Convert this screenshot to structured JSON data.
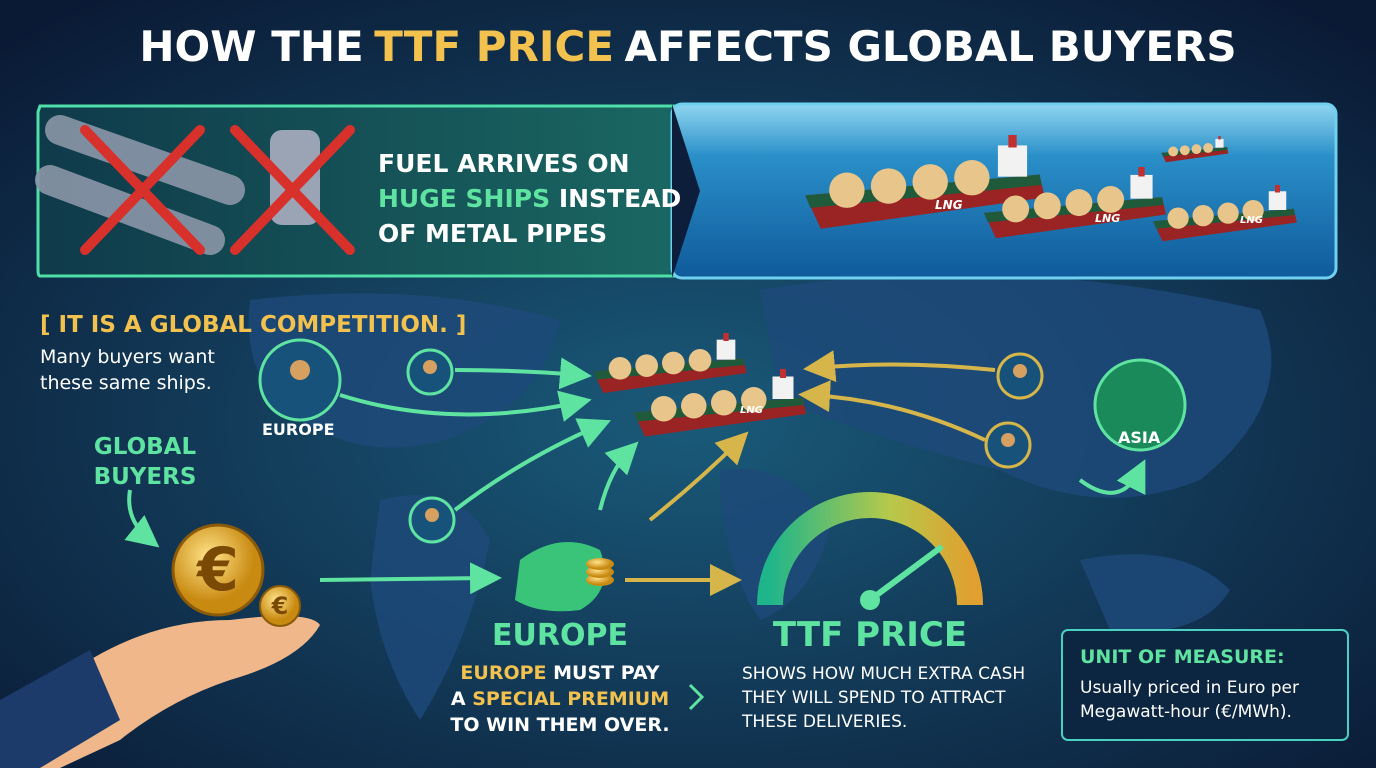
{
  "title": {
    "before": "HOW THE",
    "highlight": "TTF PRICE",
    "after": "AFFECTS GLOBAL BUYERS"
  },
  "banner": {
    "line1": "FUEL ARRIVES ON",
    "highlight": "HUGE SHIPS",
    "line2_rest": "INSTEAD",
    "line3": "OF METAL PIPES"
  },
  "ship_label": "LNG",
  "competition": {
    "heading": "[ IT IS A GLOBAL COMPETITION. ]",
    "body": "Many buyers want these same ships."
  },
  "map_labels": {
    "europe": "EUROPE",
    "asia": "ASIA"
  },
  "global_buyers": "GLOBAL BUYERS",
  "currency_symbol": "€",
  "europe": {
    "heading": "EUROPE",
    "line1_highlight": "EUROPE",
    "line1_rest": "MUST PAY",
    "line2_start": "A",
    "line2_highlight": "SPECIAL PREMIUM",
    "line3": "TO WIN THEM OVER."
  },
  "ttf": {
    "heading": "TTF PRICE",
    "body": "SHOWS HOW MUCH EXTRA CASH THEY WILL SPEND TO ATTRACT THESE DELIVERIES."
  },
  "unit": {
    "heading": "UNIT OF MEASURE:",
    "body": "Usually priced in Euro per Megawatt-hour (€/MWh)."
  }
}
